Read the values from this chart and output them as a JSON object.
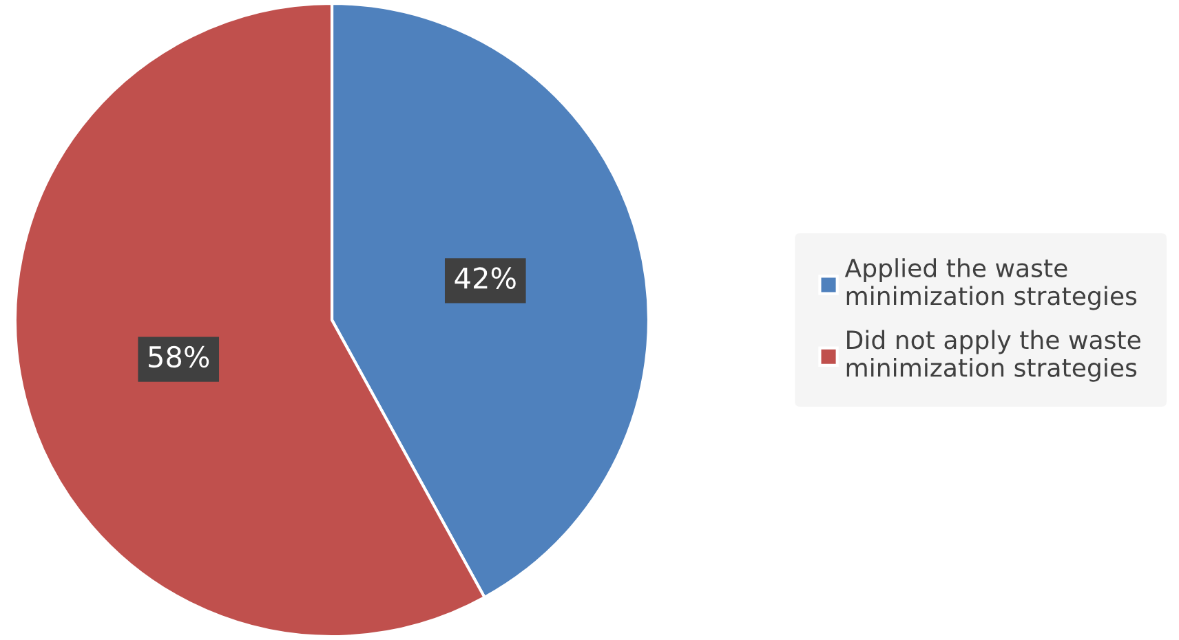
{
  "chart_data": {
    "type": "pie",
    "categories": [
      "Applied the waste\nminimization strategies",
      "Did not apply the waste\nminimization strategies"
    ],
    "values": [
      42,
      58
    ],
    "colors": [
      "#4f81bd",
      "#c0504d"
    ],
    "value_labels": [
      "42%",
      "58%"
    ],
    "legend": "right"
  }
}
